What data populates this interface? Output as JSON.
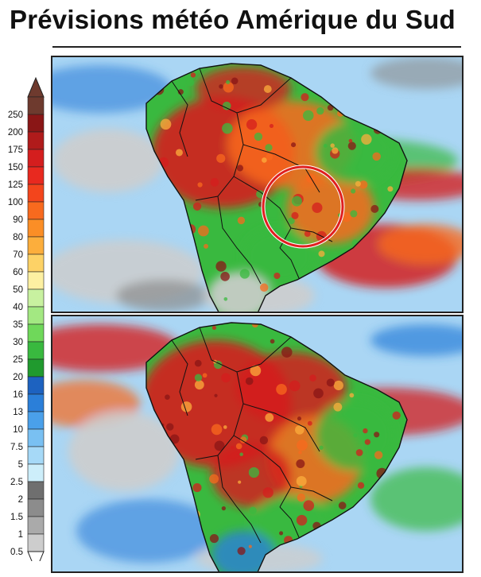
{
  "title": "Prévisions météo Amérique du Sud",
  "legend": {
    "levels": [
      {
        "label": "250",
        "color": "#6e3a2e"
      },
      {
        "label": "200",
        "color": "#8a1616"
      },
      {
        "label": "175",
        "color": "#b01b1b"
      },
      {
        "label": "150",
        "color": "#d41e1e"
      },
      {
        "label": "125",
        "color": "#e8291f"
      },
      {
        "label": "100",
        "color": "#f3451c"
      },
      {
        "label": "90",
        "color": "#f86a1e"
      },
      {
        "label": "80",
        "color": "#fb8e26"
      },
      {
        "label": "70",
        "color": "#fcae3c"
      },
      {
        "label": "60",
        "color": "#fdd266"
      },
      {
        "label": "50",
        "color": "#fdf0a2"
      },
      {
        "label": "40",
        "color": "#c8f1a0"
      },
      {
        "label": "35",
        "color": "#a3e882"
      },
      {
        "label": "30",
        "color": "#6fd85a"
      },
      {
        "label": "25",
        "color": "#39b93f"
      },
      {
        "label": "20",
        "color": "#209a2e"
      },
      {
        "label": "16",
        "color": "#1d62c0"
      },
      {
        "label": "13",
        "color": "#2b7fd9"
      },
      {
        "label": "10",
        "color": "#4aa0ea"
      },
      {
        "label": "7.5",
        "color": "#79c0f2"
      },
      {
        "label": "5",
        "color": "#a6d9f7"
      },
      {
        "label": "2.5",
        "color": "#cdeefa"
      },
      {
        "label": "2",
        "color": "#6f6f6f"
      },
      {
        "label": "1.5",
        "color": "#8c8c8c"
      },
      {
        "label": "1",
        "color": "#aaaaaa"
      },
      {
        "label": "0.5",
        "color": "#cdcdcd"
      }
    ],
    "top_arrow_color": "#6e3a2e",
    "bottom_arrow_color": "#ffffff"
  },
  "palette": {
    "ocean": "#aad6f4",
    "land_wet": "#39b93f",
    "land_mid": "#f86a1e",
    "land_heavy": "#d41e1e",
    "dry": "#cdcdcd",
    "dry_dark": "#8c8c8c",
    "blue": "#2b7fd9",
    "border": "#111111",
    "highlight_ring": "#e02020"
  },
  "panels": [
    {
      "name": "map-panel-top",
      "has_highlight": true
    },
    {
      "name": "map-panel-bottom",
      "has_highlight": false
    }
  ]
}
